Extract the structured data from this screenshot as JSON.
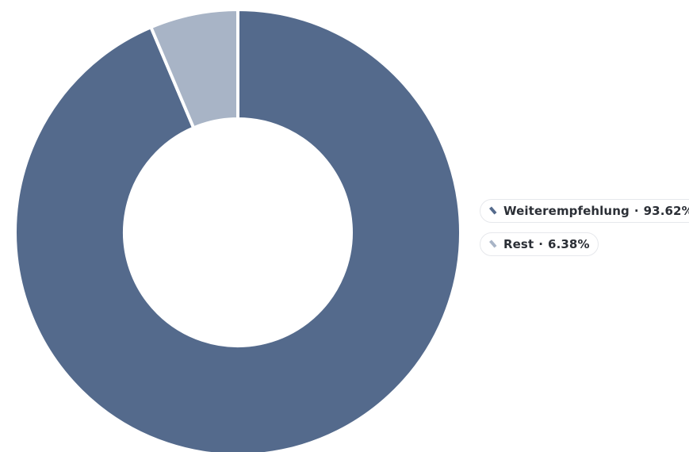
{
  "chart_data": {
    "type": "pie",
    "subtype": "donut",
    "slices": [
      {
        "label": "Weiterempfehlung",
        "value": 93.62,
        "value_label": "93.62%",
        "color": "#546a8c"
      },
      {
        "label": "Rest",
        "value": 6.38,
        "value_label": "6.38%",
        "color": "#a8b4c6"
      }
    ],
    "legend_placement": "right",
    "start_angle": "top",
    "direction": "clockwise"
  },
  "legend": {
    "separator": "·",
    "items": [
      {
        "label": "Weiterempfehlung",
        "value": "93.62%",
        "color": "#546a8c"
      },
      {
        "label": "Rest",
        "value": "6.38%",
        "color": "#a8b4c6"
      }
    ]
  }
}
